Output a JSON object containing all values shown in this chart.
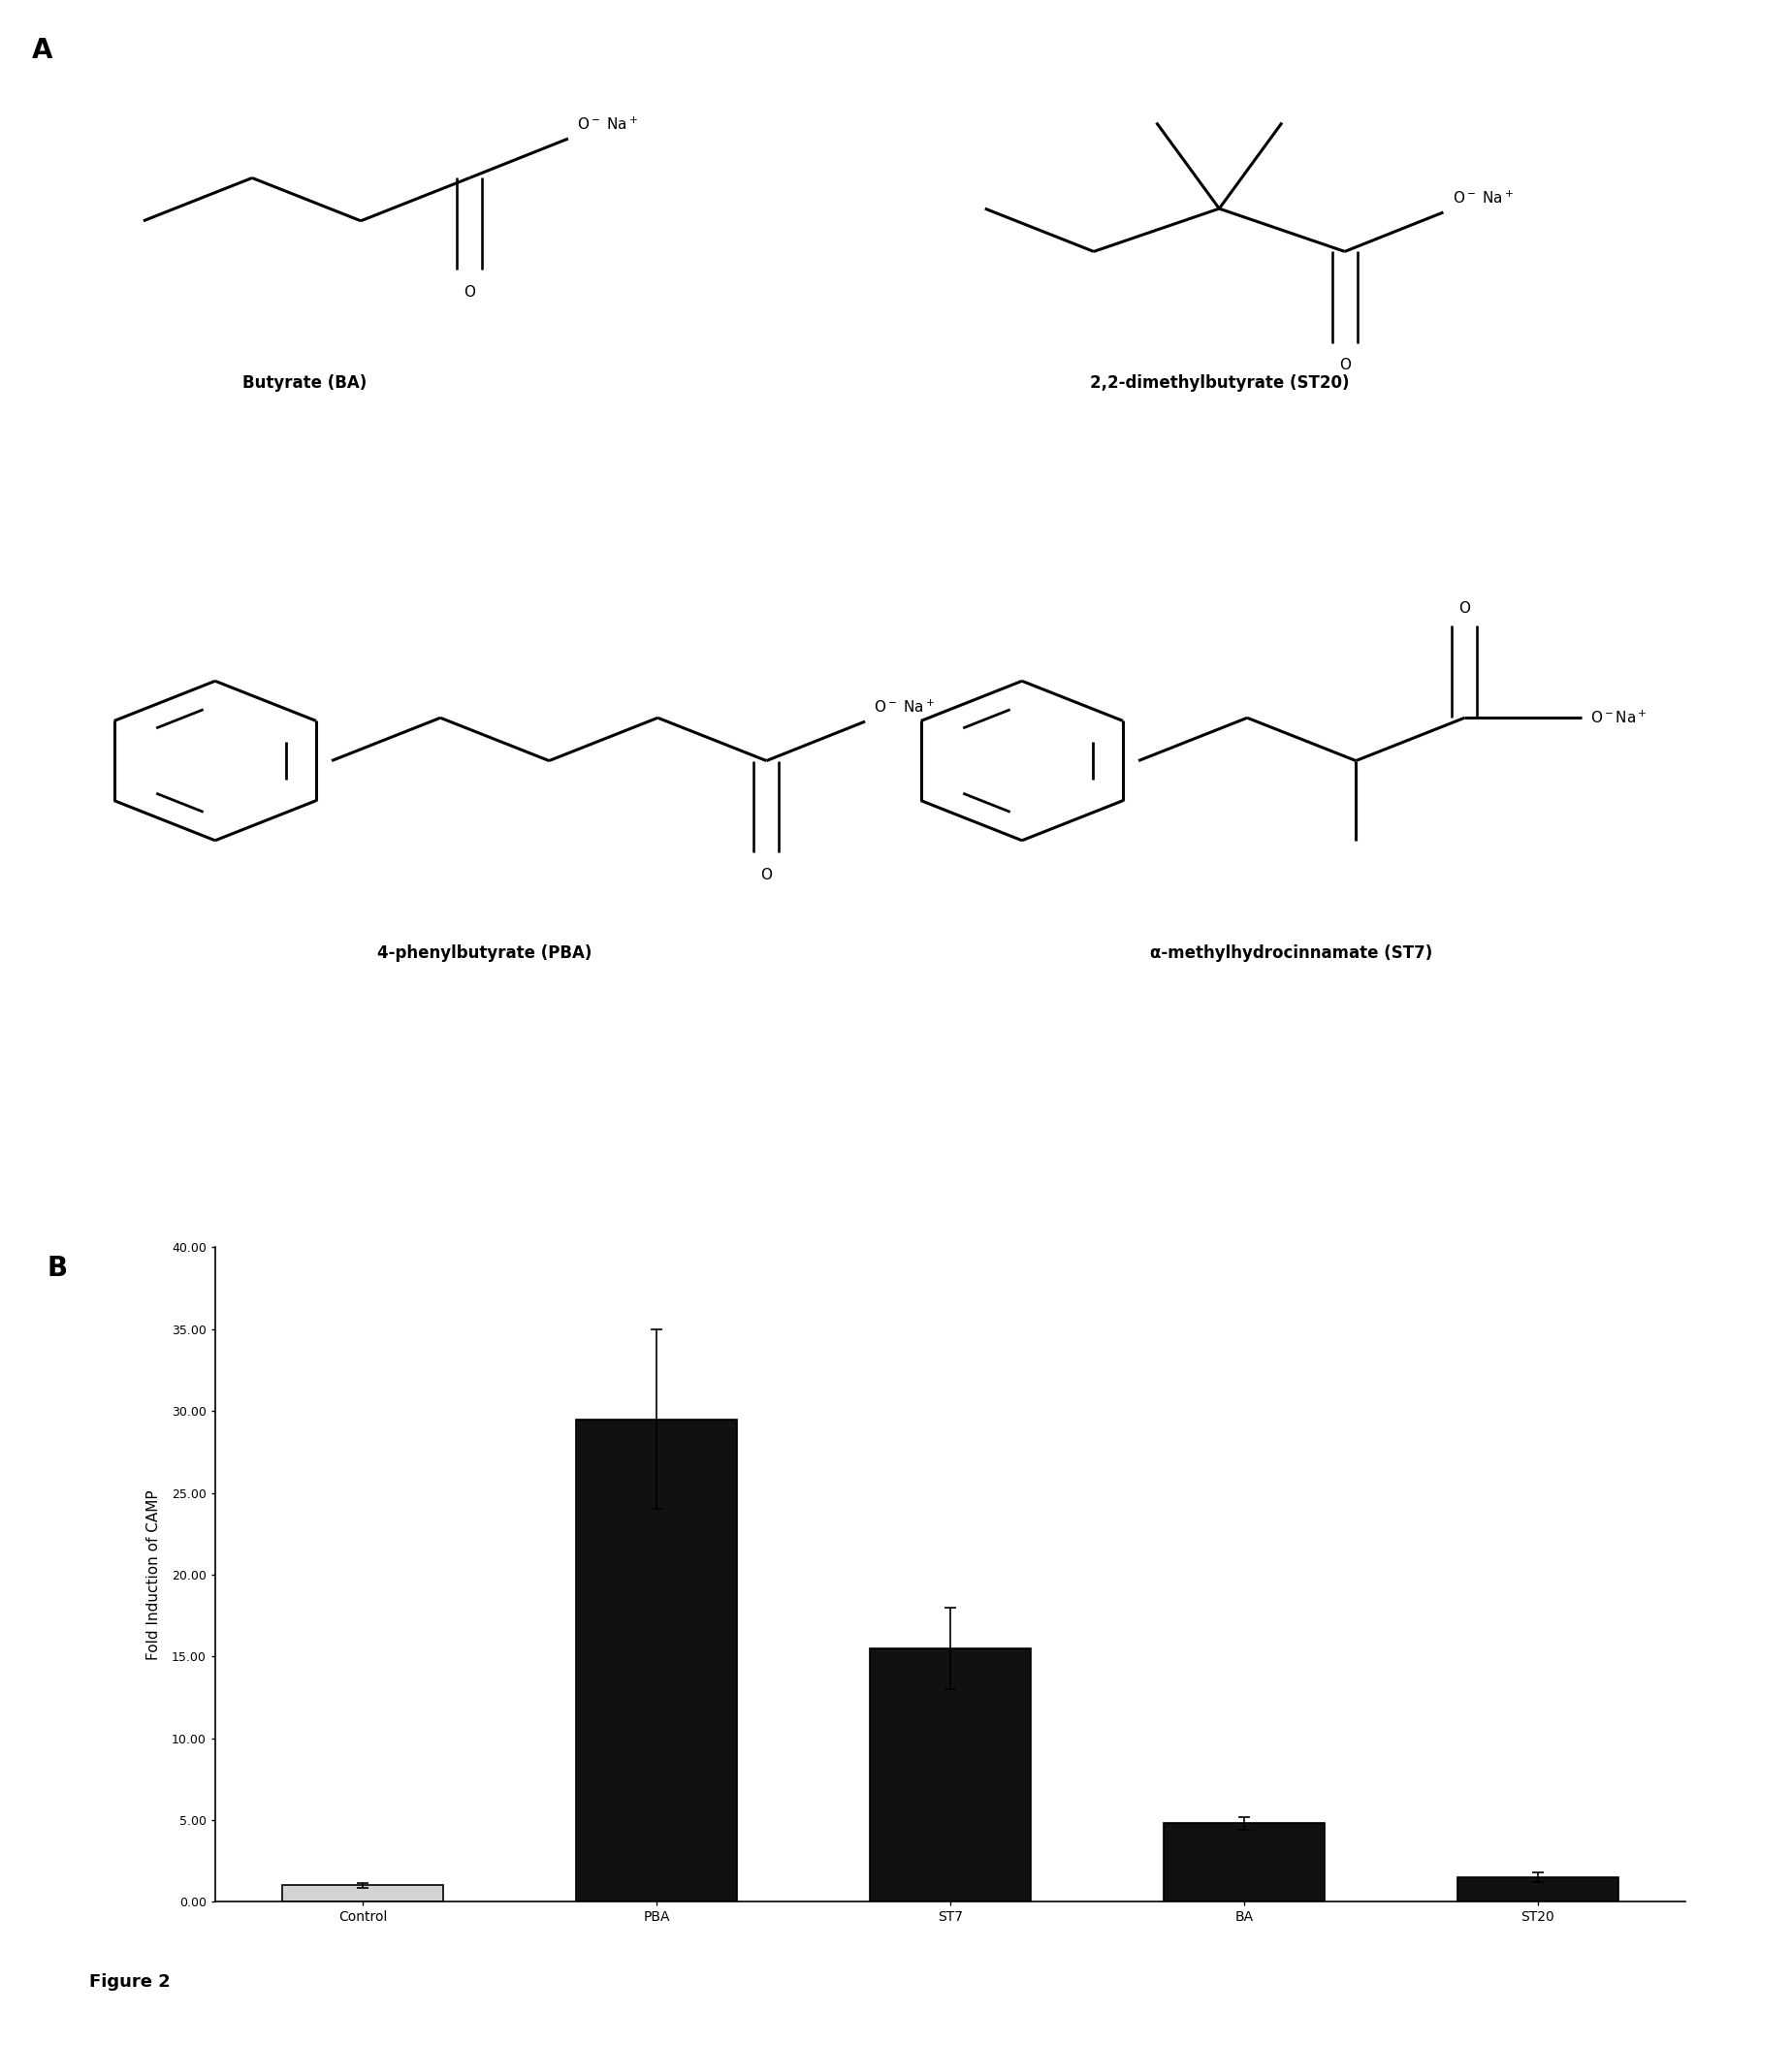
{
  "panel_a_label": "A",
  "panel_b_label": "B",
  "figure_label": "Figure 2",
  "compound_names": [
    "Butyrate (BA)",
    "2,2-dimethylbutyrate (ST20)",
    "4-phenylbutyrate (PBA)",
    "α-methylhydrocinnamate (ST7)"
  ],
  "bar_categories": [
    "Control",
    "PBA",
    "ST7",
    "BA",
    "ST20"
  ],
  "bar_values": [
    1.0,
    29.5,
    15.5,
    4.8,
    1.5
  ],
  "bar_errors": [
    0.15,
    5.5,
    2.5,
    0.4,
    0.3
  ],
  "bar_colors": [
    "#d3d3d3",
    "#111111",
    "#111111",
    "#111111",
    "#111111"
  ],
  "bar_edgecolors": [
    "#000000",
    "#000000",
    "#000000",
    "#000000",
    "#000000"
  ],
  "ylabel": "Fold Induction of CAMP",
  "ylim": [
    0,
    40
  ],
  "yticks": [
    0.0,
    5.0,
    10.0,
    15.0,
    20.0,
    25.0,
    30.0,
    35.0,
    40.0
  ],
  "ytick_labels": [
    "0.00",
    "5.00",
    "10.00",
    "15.00",
    "20.00",
    "25.00",
    "30.00",
    "35.00",
    "40.00"
  ],
  "background_color": "#ffffff",
  "bar_width": 0.55,
  "ylabel_fontsize": 11,
  "tick_fontsize": 9,
  "xlabel_fontsize": 10,
  "compound_label_fontsize": 12,
  "panel_label_fontsize": 20
}
